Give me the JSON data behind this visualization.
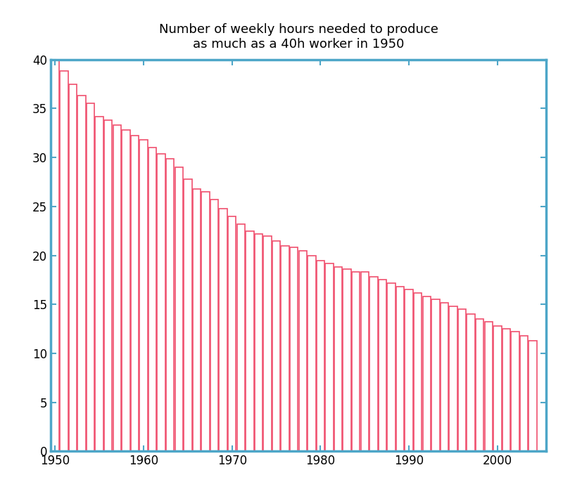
{
  "title": "Number of weekly hours needed to produce\nas much as a 40h worker in 1950",
  "years": [
    1950,
    1951,
    1952,
    1953,
    1954,
    1955,
    1956,
    1957,
    1958,
    1959,
    1960,
    1961,
    1962,
    1963,
    1964,
    1965,
    1966,
    1967,
    1968,
    1969,
    1970,
    1971,
    1972,
    1973,
    1974,
    1975,
    1976,
    1977,
    1978,
    1979,
    1980,
    1981,
    1982,
    1983,
    1984,
    1985,
    1986,
    1987,
    1988,
    1989,
    1990,
    1991,
    1992,
    1993,
    1994,
    1995,
    1996,
    1997,
    1998,
    1999,
    2000,
    2001,
    2002,
    2003,
    2004
  ],
  "values": [
    40.0,
    38.8,
    37.5,
    36.3,
    35.5,
    34.2,
    33.8,
    33.3,
    32.8,
    32.2,
    31.8,
    31.0,
    30.4,
    29.9,
    29.0,
    27.8,
    26.8,
    26.5,
    25.7,
    24.8,
    24.0,
    23.2,
    22.5,
    22.2,
    22.0,
    21.5,
    21.0,
    20.8,
    20.5,
    20.0,
    19.5,
    19.2,
    18.8,
    18.6,
    18.3,
    18.3,
    17.8,
    17.5,
    17.2,
    16.8,
    16.5,
    16.2,
    15.8,
    15.5,
    15.2,
    14.8,
    14.5,
    14.0,
    13.5,
    13.2,
    12.8,
    12.5,
    12.2,
    11.8,
    11.3
  ],
  "bar_face_color": "#ffffff",
  "bar_edge_color": "#f0506e",
  "spine_color": "#4da6c8",
  "tick_color": "#4da6c8",
  "background_color": "#ffffff",
  "xlim": [
    1949.5,
    2005.5
  ],
  "ylim": [
    0,
    40
  ],
  "yticks": [
    0,
    5,
    10,
    15,
    20,
    25,
    30,
    35,
    40
  ],
  "xticks": [
    1950,
    1960,
    1970,
    1980,
    1990,
    2000
  ],
  "title_fontsize": 13,
  "tick_fontsize": 12,
  "bar_width": 0.9,
  "bar_linewidth": 1.2
}
